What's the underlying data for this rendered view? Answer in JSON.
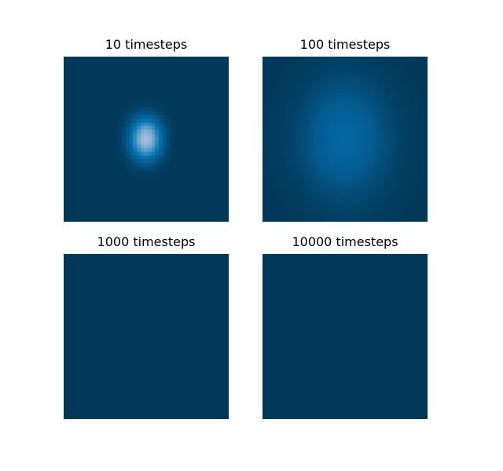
{
  "chart_data": [
    {
      "type": "heatmap",
      "title": "10 timesteps",
      "grid": false,
      "axes_visible": false,
      "colormap": [
        "#023858",
        "#045a8d",
        "#0570b0",
        "#3690c0",
        "#74a9cf",
        "#a6bddb"
      ],
      "blob": {
        "center": [
          0.5,
          0.5
        ],
        "sigma": [
          0.09,
          0.12
        ],
        "peak": 1.0
      },
      "grid_cells": 45
    },
    {
      "type": "heatmap",
      "title": "100 timesteps",
      "grid": false,
      "axes_visible": false,
      "colormap": [
        "#023858",
        "#045a8d",
        "#0570b0",
        "#3690c0",
        "#74a9cf",
        "#a6bddb"
      ],
      "blob": {
        "center": [
          0.5,
          0.5
        ],
        "sigma": [
          0.26,
          0.34
        ],
        "peak": 0.32
      },
      "grid_cells": 45
    },
    {
      "type": "heatmap",
      "title": "1000 timesteps",
      "grid": false,
      "axes_visible": false,
      "colormap": [
        "#023858",
        "#045a8d",
        "#0570b0",
        "#3690c0",
        "#74a9cf",
        "#a6bddb"
      ],
      "blob": {
        "center": [
          0.5,
          0.5
        ],
        "sigma": [
          0.9,
          1.1
        ],
        "peak": 0.0
      },
      "grid_cells": 45
    },
    {
      "type": "heatmap",
      "title": "10000 timesteps",
      "grid": false,
      "axes_visible": false,
      "colormap": [
        "#023858",
        "#045a8d",
        "#0570b0",
        "#3690c0",
        "#74a9cf",
        "#a6bddb"
      ],
      "blob": {
        "center": [
          0.5,
          0.5
        ],
        "sigma": [
          1.5,
          1.5
        ],
        "peak": 0.0
      },
      "grid_cells": 45
    }
  ]
}
